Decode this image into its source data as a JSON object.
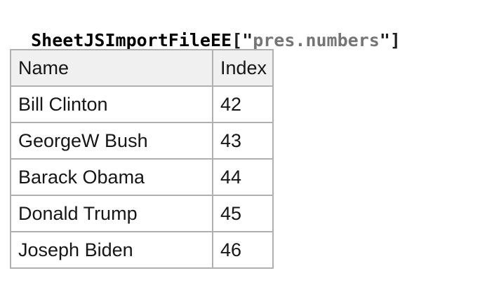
{
  "title": {
    "workbook": "SheetJSImportFileEE",
    "open_bracket": "[\"",
    "sheet_name": "pres.numbers",
    "close_bracket": "\"]"
  },
  "table": {
    "columns": [
      "Name",
      "Index"
    ],
    "rows": [
      {
        "name": "Bill Clinton",
        "index": "42"
      },
      {
        "name": "GeorgeW Bush",
        "index": "43"
      },
      {
        "name": "Barack Obama",
        "index": "44"
      },
      {
        "name": "Donald Trump",
        "index": "45"
      },
      {
        "name": "Joseph Biden",
        "index": "46"
      }
    ]
  },
  "colors": {
    "page_background": "#ffffff",
    "title_text": "#000000",
    "title_sheet_name": "#757575",
    "table_border": "#b0b0b0",
    "header_background": "#f0f0f0",
    "cell_text": "#161616"
  }
}
